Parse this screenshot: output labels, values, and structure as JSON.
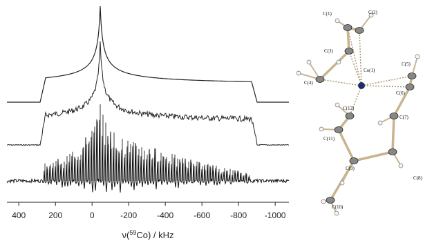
{
  "figure": {
    "x_axis": {
      "label_prefix": "ν(",
      "label_sup": "59",
      "label_suffix": "Co) / kHz",
      "xlim": [
        465,
        -1075
      ],
      "ticks": [
        400,
        200,
        0,
        -200,
        -400,
        -600,
        -800,
        -1000
      ]
    },
    "atoms": [
      "C(1)",
      "C(2)",
      "C(3)",
      "C(4)",
      "Co(1)",
      "C(5)",
      "C(6)",
      "C(7)",
      "C(12)",
      "C(11)",
      "C(8)",
      "C(9)",
      "C(10)"
    ]
  }
}
